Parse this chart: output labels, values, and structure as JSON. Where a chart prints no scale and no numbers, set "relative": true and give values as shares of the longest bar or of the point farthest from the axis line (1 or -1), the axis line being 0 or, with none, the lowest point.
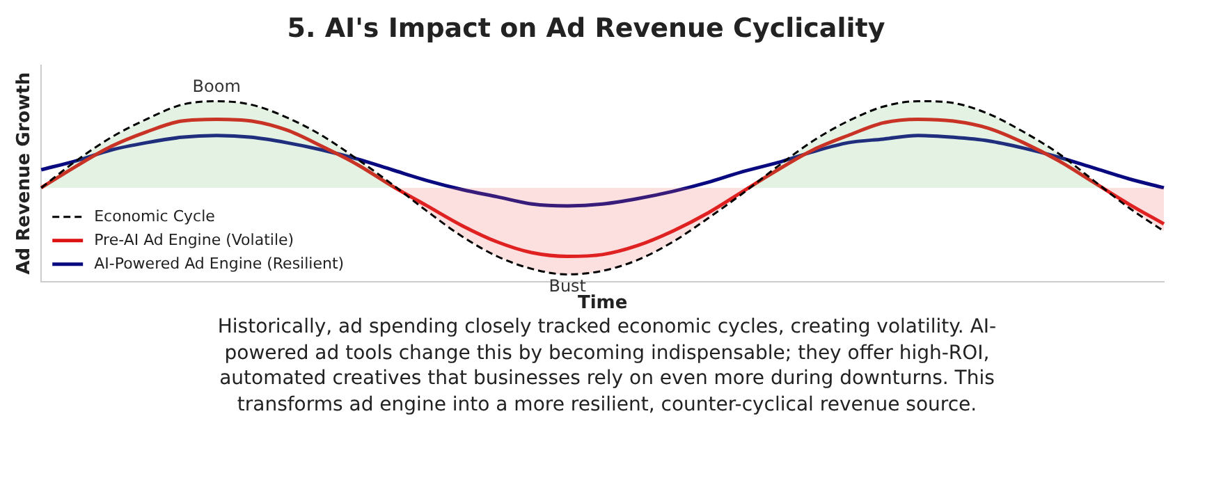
{
  "chart_data": {
    "type": "line",
    "title": "5. AI's Impact on Ad Revenue Cyclicality",
    "xlabel": "Time",
    "ylabel": "Ad Revenue Growth",
    "relative": true,
    "legend": "bottom left",
    "marker": "none",
    "grid": false,
    "categories": [
      null,
      null,
      null,
      null,
      null,
      null,
      null,
      null,
      null,
      null,
      null,
      null,
      null,
      null,
      null,
      null,
      null,
      null,
      null,
      null,
      null,
      null,
      null,
      null,
      null,
      null,
      null,
      null,
      null,
      null,
      null,
      null,
      null
    ],
    "series": [
      {
        "name": "Economic Cycle",
        "color": "#000000",
        "line_style": "dashed",
        "values": [
          0.52,
          0.67,
          0.8,
          0.9,
          0.98,
          1,
          0.98,
          0.91,
          0.81,
          0.68,
          0.54,
          0.39,
          0.25,
          0.14,
          0.07,
          0.04,
          0.06,
          0.12,
          0.22,
          0.35,
          0.49,
          0.64,
          0.78,
          0.89,
          0.97,
          1,
          0.99,
          0.93,
          0.83,
          0.71,
          0.56,
          0.41,
          0.28
        ]
      },
      {
        "name": "Pre-AI Ad Engine (Volatile)",
        "color": "#dd1111",
        "line_style": "solid",
        "values": [
          0.52,
          0.64,
          0.75,
          0.83,
          0.89,
          0.9,
          0.89,
          0.84,
          0.75,
          0.65,
          0.53,
          0.42,
          0.31,
          0.22,
          0.16,
          0.14,
          0.15,
          0.2,
          0.28,
          0.38,
          0.5,
          0.62,
          0.73,
          0.81,
          0.88,
          0.9,
          0.89,
          0.85,
          0.77,
          0.67,
          0.55,
          0.43,
          0.32
        ]
      },
      {
        "name": "AI-Powered Ad Engine (Resilient)",
        "color": "#0a0a80",
        "line_style": "solid",
        "values": [
          0.62,
          0.67,
          0.73,
          0.77,
          0.8,
          0.81,
          0.8,
          0.77,
          0.73,
          0.68,
          0.62,
          0.56,
          0.51,
          0.47,
          0.43,
          0.42,
          0.43,
          0.46,
          0.5,
          0.55,
          0.61,
          0.66,
          0.72,
          0.77,
          0.79,
          0.81,
          0.8,
          0.78,
          0.74,
          0.69,
          0.63,
          0.57,
          0.52
        ]
      }
    ],
    "annotations": [
      "Boom",
      "Bust",
      "Historically, ad spending closely tracked economic cycles, creating volatility. AI-powered ad tools change this by becoming indispensable; they offer high-ROI, automated creatives that businesses rely on even more during downturns. This transforms ad engine into a more resilient, counter-cyclical revenue source."
    ]
  }
}
